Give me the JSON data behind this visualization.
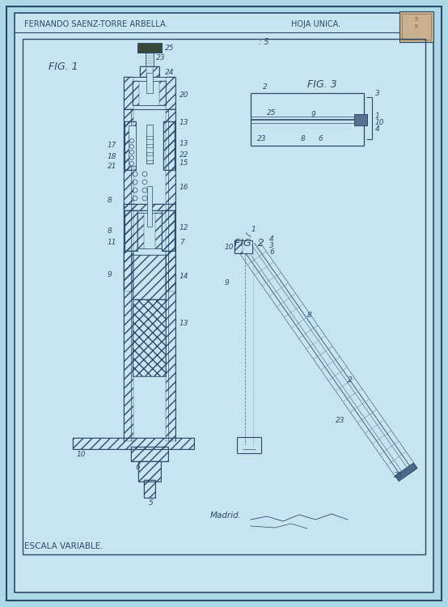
{
  "bg_color": "#add8e6",
  "paper_color": "#c8e4f0",
  "line_color": "#2a4a6a",
  "title_left": "FERNANDO SAENZ-TORRE ARBELLA.",
  "title_right": "HOJA UNICA.",
  "fig1_label": "FIG. 1",
  "fig2_label": "FIG. 2",
  "fig3_label": "FIG. 3",
  "bottom_label": "ESCALA VARIABLE.",
  "madrid_label": "Madrid.",
  "fig_width": 5.54,
  "fig_height": 7.5,
  "dpi": 100
}
